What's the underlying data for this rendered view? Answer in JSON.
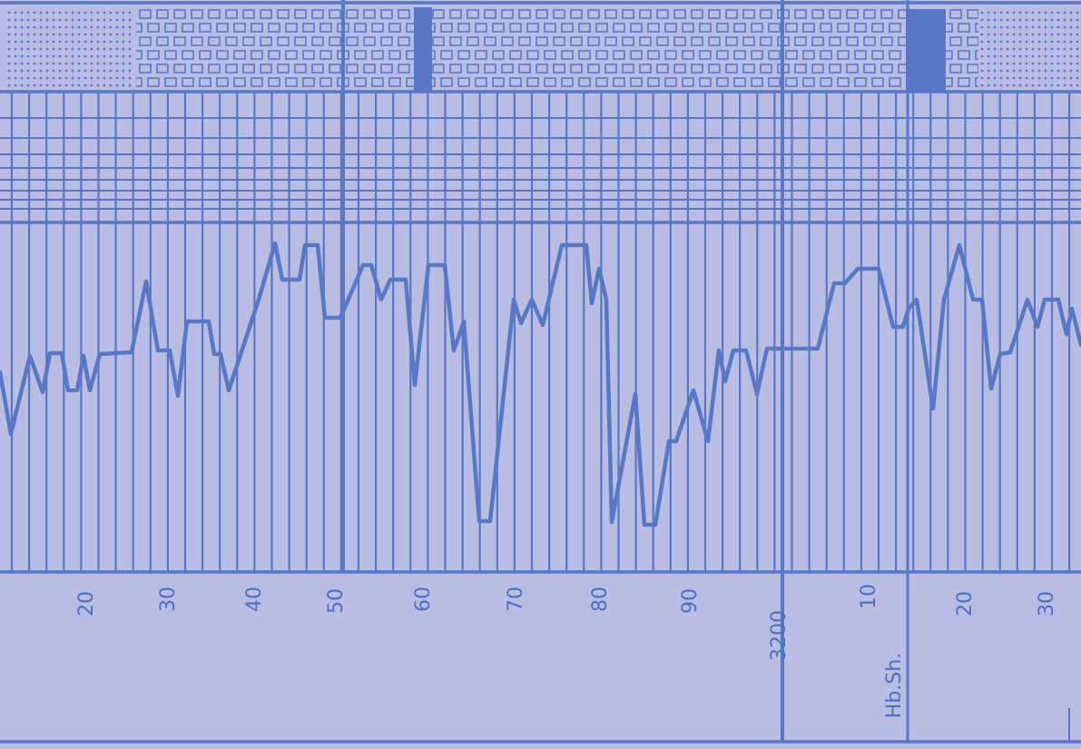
{
  "depth_labels": [
    "20",
    "30",
    "40",
    "50",
    "60",
    "70",
    "80",
    "90",
    "3200",
    "10",
    "20",
    "30"
  ],
  "formation_label": "Hb.Sh.",
  "colors": {
    "paper": "#b9bde3",
    "ink": "#5a77c6",
    "ink_dark": "#4a66b8"
  }
}
